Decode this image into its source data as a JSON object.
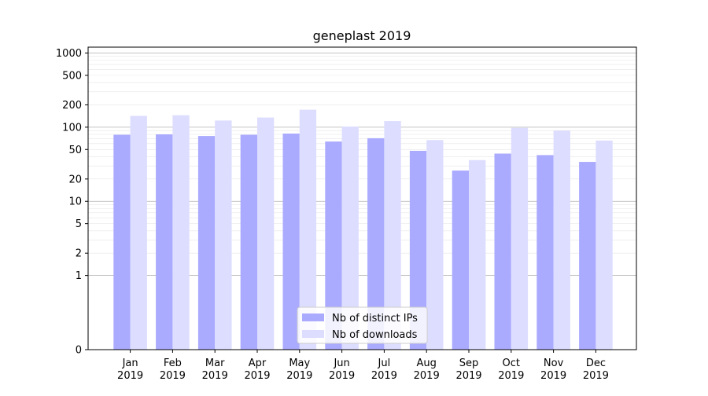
{
  "chart_data": {
    "type": "bar",
    "title": "geneplast 2019",
    "xlabel": "",
    "ylabel": "",
    "yscale": "symlog",
    "ylim": [
      0,
      1200
    ],
    "yticks": [
      {
        "value": 0,
        "label": "0"
      },
      {
        "value": 1,
        "label": "1"
      },
      {
        "value": 2,
        "label": "2"
      },
      {
        "value": 5,
        "label": "5"
      },
      {
        "value": 10,
        "label": "10"
      },
      {
        "value": 20,
        "label": "20"
      },
      {
        "value": 50,
        "label": "50"
      },
      {
        "value": 100,
        "label": "100"
      },
      {
        "value": 200,
        "label": "200"
      },
      {
        "value": 500,
        "label": "500"
      },
      {
        "value": 1000,
        "label": "1000"
      }
    ],
    "grid": true,
    "legend_position": "bottom-center",
    "categories": [
      [
        "Jan",
        "2019"
      ],
      [
        "Feb",
        "2019"
      ],
      [
        "Mar",
        "2019"
      ],
      [
        "Apr",
        "2019"
      ],
      [
        "May",
        "2019"
      ],
      [
        "Jun",
        "2019"
      ],
      [
        "Jul",
        "2019"
      ],
      [
        "Aug",
        "2019"
      ],
      [
        "Sep",
        "2019"
      ],
      [
        "Oct",
        "2019"
      ],
      [
        "Nov",
        "2019"
      ],
      [
        "Dec",
        "2019"
      ]
    ],
    "series": [
      {
        "name": "Nb of distinct IPs",
        "color": "#aaaaff",
        "values": [
          79,
          80,
          76,
          79,
          82,
          64,
          71,
          48,
          26,
          44,
          42,
          34
        ]
      },
      {
        "name": "Nb of downloads",
        "color": "#ddddff",
        "values": [
          142,
          145,
          123,
          135,
          172,
          102,
          121,
          67,
          36,
          98,
          90,
          66
        ]
      }
    ]
  }
}
